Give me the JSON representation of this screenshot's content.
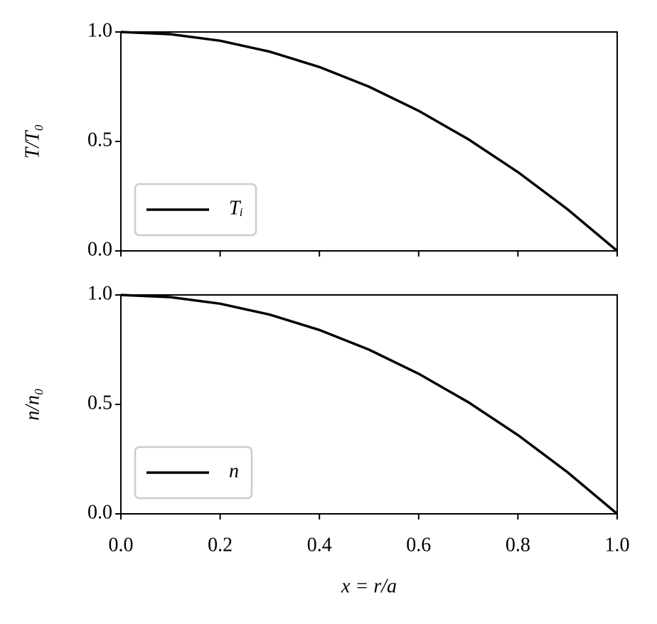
{
  "chart_data": [
    {
      "type": "line",
      "ylabel": "T/T₀",
      "x": [
        0,
        0.1,
        0.2,
        0.3,
        0.4,
        0.5,
        0.6,
        0.7,
        0.8,
        0.9,
        1.0
      ],
      "series": [
        {
          "name": "Tᵢ",
          "color": "#000000",
          "values": [
            1,
            0.99,
            0.96,
            0.91,
            0.84,
            0.75,
            0.64,
            0.51,
            0.36,
            0.19,
            0
          ]
        }
      ],
      "xlim": [
        0,
        1
      ],
      "ylim": [
        0,
        1
      ],
      "xticks": [
        0,
        0.2,
        0.4,
        0.6,
        0.8,
        1
      ],
      "yticks": [
        {
          "value": 0,
          "label": "0.0"
        },
        {
          "value": 0.5,
          "label": "0.5"
        },
        {
          "value": 1,
          "label": "1.0"
        }
      ],
      "legend": "lower left"
    },
    {
      "type": "line",
      "ylabel": "n/n₀",
      "xlabel": "x = r/a",
      "x": [
        0,
        0.1,
        0.2,
        0.3,
        0.4,
        0.5,
        0.6,
        0.7,
        0.8,
        0.9,
        1.0
      ],
      "series": [
        {
          "name": "n",
          "color": "#000000",
          "values": [
            1,
            0.99,
            0.96,
            0.91,
            0.84,
            0.75,
            0.64,
            0.51,
            0.36,
            0.19,
            0
          ]
        }
      ],
      "xlim": [
        0,
        1
      ],
      "ylim": [
        0,
        1
      ],
      "xticks": [
        {
          "value": 0,
          "label": "0.0"
        },
        {
          "value": 0.2,
          "label": "0.2"
        },
        {
          "value": 0.4,
          "label": "0.4"
        },
        {
          "value": 0.6,
          "label": "0.6"
        },
        {
          "value": 0.8,
          "label": "0.8"
        },
        {
          "value": 1,
          "label": "1.0"
        }
      ],
      "yticks": [
        {
          "value": 0,
          "label": "0.0"
        },
        {
          "value": 0.5,
          "label": "0.5"
        },
        {
          "value": 1,
          "label": "1.0"
        }
      ],
      "legend": "lower left"
    }
  ]
}
